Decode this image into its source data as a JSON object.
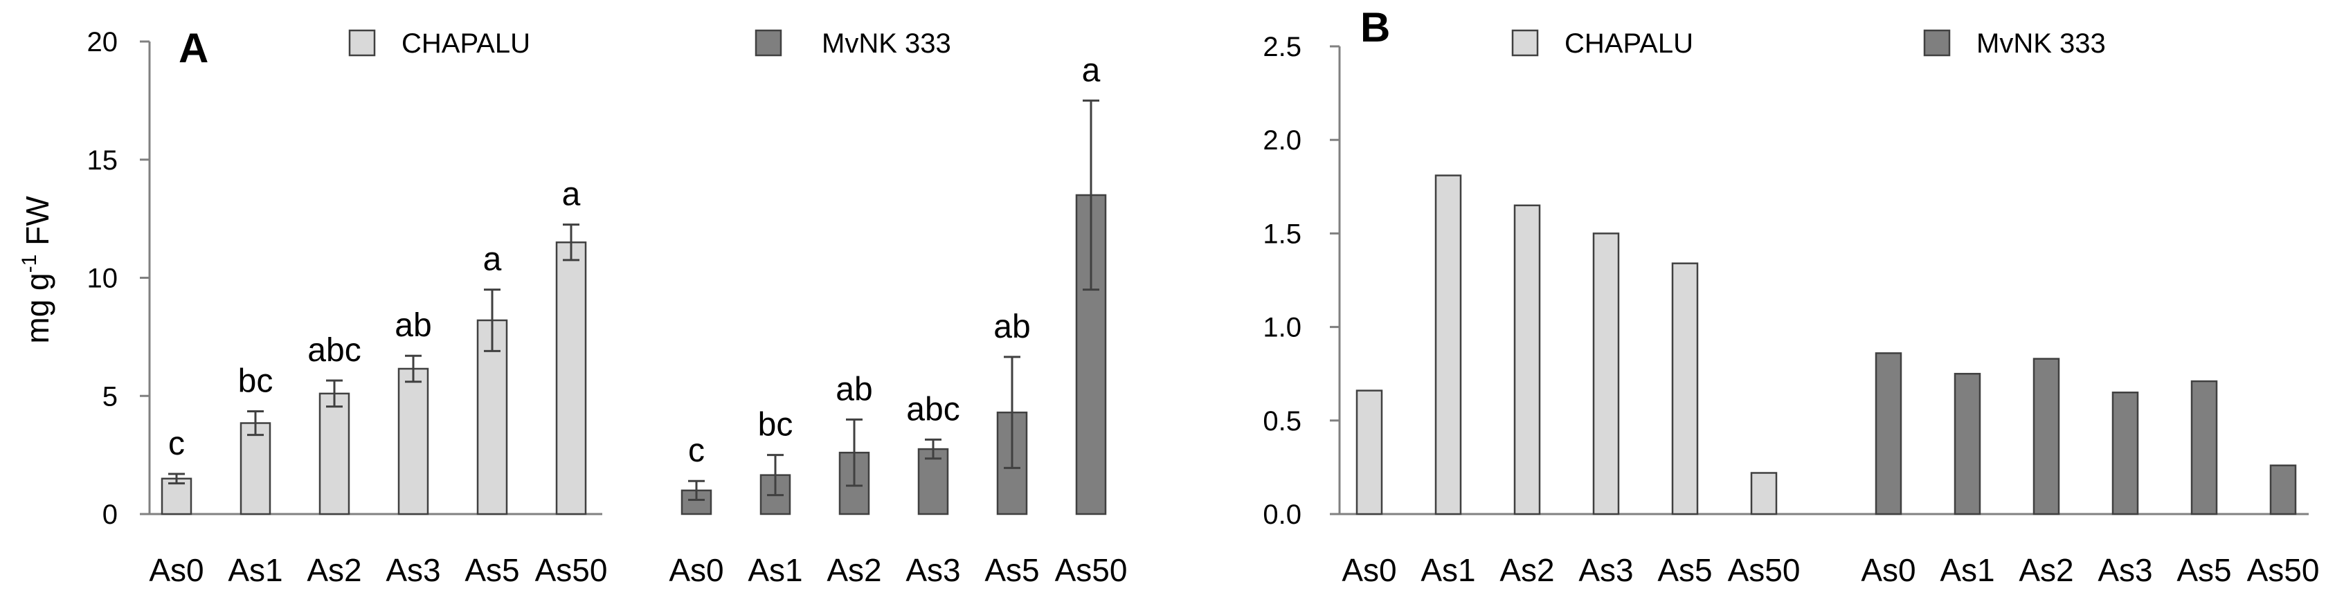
{
  "chart_data": [
    {
      "type": "bar",
      "panel_label": "A",
      "ylabel": "mg g",
      "ylabel_sup": "-1",
      "ylabel_suffix": " FW",
      "ylim": [
        0,
        20
      ],
      "yticks": [
        0,
        5,
        10,
        15,
        20
      ],
      "ytick_labels": [
        "0",
        "5",
        "10",
        "15",
        "20"
      ],
      "legend": [
        "CHAPALU",
        "MvNK 333"
      ],
      "colors": {
        "CHAPALU": "#d9d9d9",
        "MvNK 333": "#7f7f7f",
        "outline": "#404040",
        "axis": "#808080"
      },
      "groups": [
        {
          "name": "CHAPALU",
          "categories": [
            "As0",
            "As1",
            "As2",
            "As3",
            "As5",
            "As50"
          ],
          "values": [
            1.5,
            3.85,
            5.1,
            6.15,
            8.2,
            11.5
          ],
          "errors": [
            0.2,
            0.5,
            0.55,
            0.55,
            1.3,
            0.75
          ],
          "letters": [
            "c",
            "bc",
            "abc",
            "ab",
            "a",
            "a"
          ]
        },
        {
          "name": "MvNK 333",
          "categories": [
            "As0",
            "As1",
            "As2",
            "As3",
            "As5",
            "As50"
          ],
          "values": [
            1.0,
            1.65,
            2.6,
            2.75,
            4.3,
            13.5
          ],
          "errors": [
            0.4,
            0.85,
            1.4,
            0.4,
            2.35,
            4.0
          ],
          "letters": [
            "c",
            "bc",
            "ab",
            "abc",
            "ab",
            "a"
          ]
        }
      ]
    },
    {
      "type": "bar",
      "panel_label": "B",
      "ylim": [
        0,
        2.5
      ],
      "yticks": [
        0,
        0.5,
        1.0,
        1.5,
        2.0,
        2.5
      ],
      "ytick_labels": [
        "0.0",
        "0.5",
        "1.0",
        "1.5",
        "2.0",
        "2.5"
      ],
      "legend": [
        "CHAPALU",
        "MvNK 333"
      ],
      "colors": {
        "CHAPALU": "#d9d9d9",
        "MvNK 333": "#7f7f7f",
        "outline": "#404040",
        "axis": "#808080"
      },
      "groups": [
        {
          "name": "CHAPALU",
          "categories": [
            "As0",
            "As1",
            "As2",
            "As3",
            "As5",
            "As50"
          ],
          "values": [
            0.66,
            1.81,
            1.65,
            1.5,
            1.34,
            0.22
          ]
        },
        {
          "name": "MvNK 333",
          "categories": [
            "As0",
            "As1",
            "As2",
            "As3",
            "As5",
            "As50"
          ],
          "values": [
            0.86,
            0.75,
            0.83,
            0.65,
            0.71,
            0.26
          ]
        }
      ]
    }
  ]
}
